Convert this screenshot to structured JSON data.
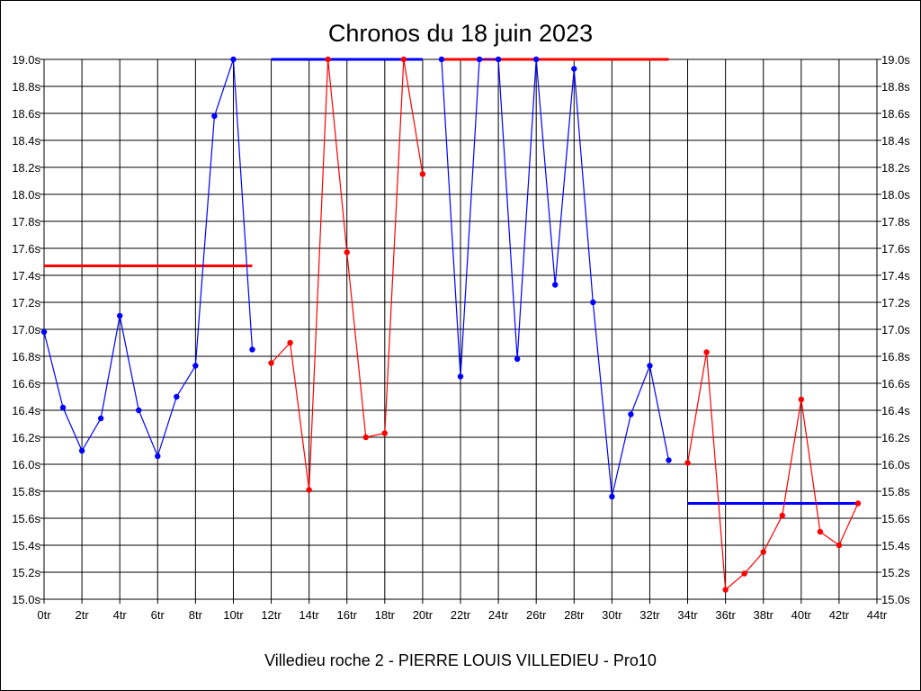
{
  "chart_data": {
    "type": "line",
    "title": "Chronos du 18 juin 2023",
    "subtitle": "Villedieu roche 2 - PIERRE LOUIS VILLEDIEU - Pro10",
    "xlim": [
      0,
      44
    ],
    "ylim": [
      15.0,
      19.0
    ],
    "grid": true,
    "x_ticks": [
      "0tr",
      "2tr",
      "4tr",
      "6tr",
      "8tr",
      "10tr",
      "12tr",
      "14tr",
      "16tr",
      "18tr",
      "20tr",
      "22tr",
      "24tr",
      "26tr",
      "28tr",
      "30tr",
      "32tr",
      "34tr",
      "36tr",
      "38tr",
      "40tr",
      "42tr",
      "44tr"
    ],
    "y_ticks": [
      "15.0s",
      "15.2s",
      "15.4s",
      "15.6s",
      "15.8s",
      "16.0s",
      "16.2s",
      "16.4s",
      "16.6s",
      "16.8s",
      "17.0s",
      "17.2s",
      "17.4s",
      "17.6s",
      "17.8s",
      "18.0s",
      "18.2s",
      "18.4s",
      "18.6s",
      "18.8s",
      "19.0s"
    ],
    "series": [
      {
        "color": "#0000ff",
        "x": [
          0,
          1,
          2,
          3,
          4,
          5,
          6,
          7,
          8,
          9,
          10,
          11
        ],
        "values": [
          16.98,
          16.42,
          16.1,
          16.34,
          17.1,
          16.4,
          16.06,
          16.5,
          16.73,
          18.58,
          19.0,
          16.85
        ]
      },
      {
        "color": "#ff0000",
        "x": [
          12,
          13,
          14,
          15,
          16,
          17,
          18,
          19,
          20
        ],
        "values": [
          16.75,
          16.9,
          15.81,
          19.0,
          17.57,
          16.2,
          16.23,
          19.0,
          18.15
        ]
      },
      {
        "color": "#0000ff",
        "x": [
          21,
          22,
          23,
          24,
          25,
          26,
          27,
          28,
          29,
          30,
          31,
          32,
          33
        ],
        "values": [
          19.0,
          16.65,
          19.0,
          19.0,
          16.78,
          19.0,
          17.33,
          18.93,
          17.2,
          15.76,
          16.37,
          16.73,
          16.03
        ]
      },
      {
        "color": "#ff0000",
        "x": [
          34,
          35,
          36,
          37,
          38,
          39,
          40,
          41,
          42,
          43
        ],
        "values": [
          16.01,
          16.83,
          15.07,
          15.19,
          15.35,
          15.62,
          16.48,
          15.5,
          15.4,
          15.71
        ]
      }
    ],
    "averages": [
      {
        "color": "#ff0000",
        "x_start": 0,
        "x_end": 11,
        "value": 17.47
      },
      {
        "color": "#0000ff",
        "x_start": 12,
        "x_end": 20,
        "value": 19.0
      },
      {
        "color": "#ff0000",
        "x_start": 21,
        "x_end": 33,
        "value": 19.0
      },
      {
        "color": "#0000ff",
        "x_start": 34,
        "x_end": 43,
        "value": 15.71
      }
    ]
  }
}
